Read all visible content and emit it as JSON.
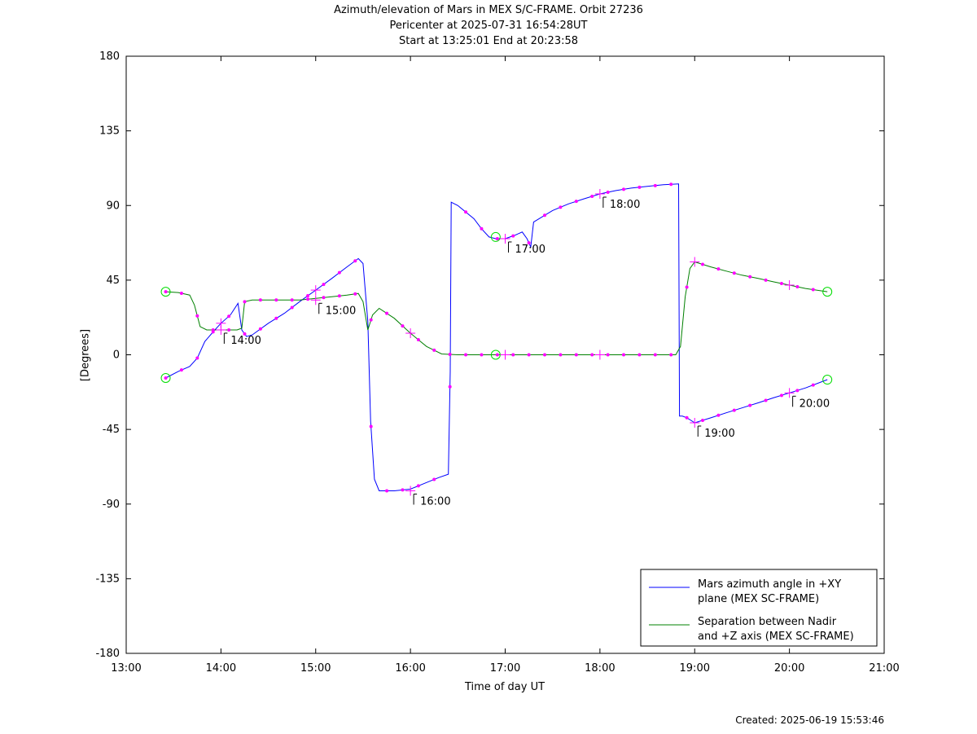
{
  "chart_data": {
    "type": "line",
    "title": "Azimuth/elevation of Mars in MEX S/C-FRAME.  Orbit 27236",
    "subtitle_lines": [
      "Pericenter at 2025-07-31 16:54:28UT",
      "Start at 13:25:01 End at 20:23:58"
    ],
    "xlabel": "Time of day UT",
    "ylabel": "[Degrees]",
    "xlim": [
      13.0,
      21.0
    ],
    "ylim": [
      -180,
      180
    ],
    "xticks": [
      13,
      14,
      15,
      16,
      17,
      18,
      19,
      20,
      21
    ],
    "xtick_labels": [
      "13:00",
      "14:00",
      "15:00",
      "16:00",
      "17:00",
      "18:00",
      "19:00",
      "20:00",
      "21:00"
    ],
    "yticks": [
      180,
      135,
      90,
      45,
      0,
      -45,
      -90,
      -135,
      -180
    ],
    "ytick_labels": [
      "180",
      "135",
      "90",
      "45",
      "0",
      "-45",
      "-90",
      "-135",
      "-180"
    ],
    "grid": false,
    "legend_position": "bottom-right",
    "series": [
      {
        "name": "Mars azimuth angle in +XY plane (MEX SC-FRAME)",
        "legend_lines": [
          "Mars azimuth angle in +XY",
          "plane (MEX SC-FRAME)"
        ],
        "color": "#0000ff",
        "x": [
          13.417,
          13.55,
          13.67,
          13.75,
          13.83,
          13.92,
          14.0,
          14.1,
          14.18,
          14.22,
          14.27,
          14.33,
          14.5,
          14.67,
          14.83,
          15.0,
          15.17,
          15.33,
          15.45,
          15.5,
          15.55,
          15.58,
          15.62,
          15.67,
          15.83,
          16.0,
          16.17,
          16.3,
          16.4,
          16.42,
          16.43,
          16.5,
          16.67,
          16.75,
          16.83,
          16.9,
          17.0,
          17.1,
          17.18,
          17.23,
          17.27,
          17.3,
          17.5,
          17.67,
          17.83,
          18.0,
          18.17,
          18.33,
          18.5,
          18.67,
          18.83,
          18.84,
          18.87,
          18.92,
          19.0,
          19.17,
          19.33,
          19.5,
          19.67,
          19.83,
          20.0,
          20.17,
          20.4
        ],
        "y": [
          -14,
          -10,
          -7,
          -2,
          8,
          14,
          19,
          24,
          31,
          15,
          11,
          12,
          19,
          25,
          32,
          39,
          46,
          53,
          58,
          55,
          20,
          -40,
          -75,
          -82,
          -82,
          -81,
          -77,
          -74,
          -72,
          -10,
          92,
          90,
          82,
          76,
          71,
          70,
          70,
          72,
          74,
          70,
          65,
          80,
          87,
          91,
          94,
          97,
          99,
          100.5,
          101.5,
          102.5,
          103,
          -37,
          -37,
          -38,
          -41,
          -38,
          -35,
          -32,
          -29,
          -26,
          -23,
          -20,
          -15
        ]
      },
      {
        "name": "Separation between Nadir and +Z axis (MEX SC-FRAME)",
        "legend_lines": [
          "Separation between Nadir",
          "and +Z axis (MEX SC-FRAME)"
        ],
        "color": "#008000",
        "x": [
          13.417,
          13.55,
          13.67,
          13.72,
          13.78,
          13.85,
          14.0,
          14.17,
          14.22,
          14.25,
          14.33,
          14.5,
          14.67,
          14.83,
          15.0,
          15.17,
          15.33,
          15.45,
          15.5,
          15.55,
          15.6,
          15.67,
          15.83,
          16.0,
          16.17,
          16.33,
          16.5,
          16.9,
          17.0,
          17.5,
          18.0,
          18.5,
          18.8,
          18.85,
          18.9,
          18.95,
          19.0,
          19.17,
          19.33,
          19.5,
          19.67,
          19.83,
          20.0,
          20.17,
          20.4
        ],
        "y": [
          38,
          37.5,
          36,
          30,
          17,
          15,
          15,
          15,
          16,
          32,
          33,
          33,
          33,
          33,
          34,
          35,
          36,
          37,
          32,
          15,
          24,
          28,
          22,
          13,
          5,
          0.5,
          0,
          0,
          0,
          0,
          0,
          0,
          0,
          5,
          35,
          52,
          56,
          53,
          50.5,
          48,
          46,
          44,
          42,
          40,
          38
        ]
      }
    ],
    "markers": {
      "open_circles": [
        {
          "x": 13.417,
          "y": -14
        },
        {
          "x": 13.417,
          "y": 38
        },
        {
          "x": 16.9,
          "y": 71
        },
        {
          "x": 16.9,
          "y": 0
        },
        {
          "x": 20.4,
          "y": -15
        },
        {
          "x": 20.4,
          "y": 38
        }
      ],
      "time_labels": [
        {
          "x": 14.0,
          "y": 15,
          "label": "14:00"
        },
        {
          "x": 15.0,
          "y": 33,
          "label": "15:00"
        },
        {
          "x": 16.0,
          "y": -82,
          "label": "16:00"
        },
        {
          "x": 17.0,
          "y": 70,
          "label": "17:00"
        },
        {
          "x": 18.0,
          "y": 97,
          "label": "18:00"
        },
        {
          "x": 19.0,
          "y": -41,
          "label": "19:00"
        },
        {
          "x": 20.0,
          "y": -23,
          "label": "20:00"
        }
      ],
      "plus_markers": [
        {
          "x": 14.0,
          "y": 19
        },
        {
          "x": 14.0,
          "y": 15
        },
        {
          "x": 15.0,
          "y": 39
        },
        {
          "x": 15.0,
          "y": 33
        },
        {
          "x": 16.0,
          "y": -82
        },
        {
          "x": 16.0,
          "y": 13
        },
        {
          "x": 17.0,
          "y": 70
        },
        {
          "x": 17.0,
          "y": 0
        },
        {
          "x": 18.0,
          "y": 97
        },
        {
          "x": 18.0,
          "y": 0
        },
        {
          "x": 19.0,
          "y": -41
        },
        {
          "x": 19.0,
          "y": 56
        },
        {
          "x": 20.0,
          "y": -23
        },
        {
          "x": 20.0,
          "y": 42
        }
      ]
    },
    "colors": {
      "azimuth": "#0000ff",
      "separation": "#008000",
      "dots": "#ff00ff",
      "circles": "#00dd00"
    }
  },
  "footer": {
    "created": "Created: 2025-06-19 15:53:46"
  }
}
